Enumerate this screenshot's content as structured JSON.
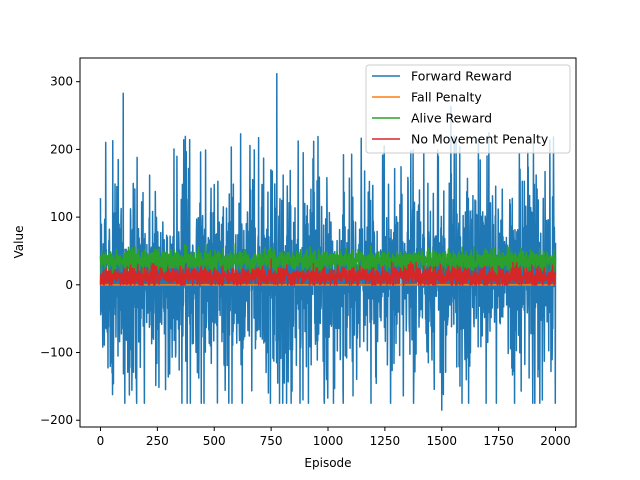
{
  "chart_data": {
    "type": "line",
    "xlabel": "Episode",
    "ylabel": "Value",
    "xlim": [
      -90,
      2090
    ],
    "ylim": [
      -210,
      335
    ],
    "xticks": [
      0,
      250,
      500,
      750,
      1000,
      1250,
      1500,
      1750,
      2000
    ],
    "yticks": [
      -200,
      -100,
      0,
      100,
      200,
      300
    ],
    "legend_position": "top-right",
    "grid": false,
    "episodes": 2000,
    "series": [
      {
        "name": "Forward Reward",
        "color": "#1f77b4",
        "range": [
          -185,
          312
        ],
        "notable_points": [
          {
            "x": 0,
            "y": 128
          },
          {
            "x": 100,
            "y": 283
          },
          {
            "x": 775,
            "y": 312
          },
          {
            "x": 890,
            "y": -170
          },
          {
            "x": 1500,
            "y": -185
          },
          {
            "x": 1540,
            "y": 263
          }
        ]
      },
      {
        "name": "Fall Penalty",
        "color": "#ff7f0e",
        "range": [
          0,
          0
        ]
      },
      {
        "name": "Alive Reward",
        "color": "#2ca02c",
        "range": [
          15,
          70
        ]
      },
      {
        "name": "No Movement Penalty",
        "color": "#d62728",
        "range": [
          0,
          40
        ]
      }
    ]
  }
}
